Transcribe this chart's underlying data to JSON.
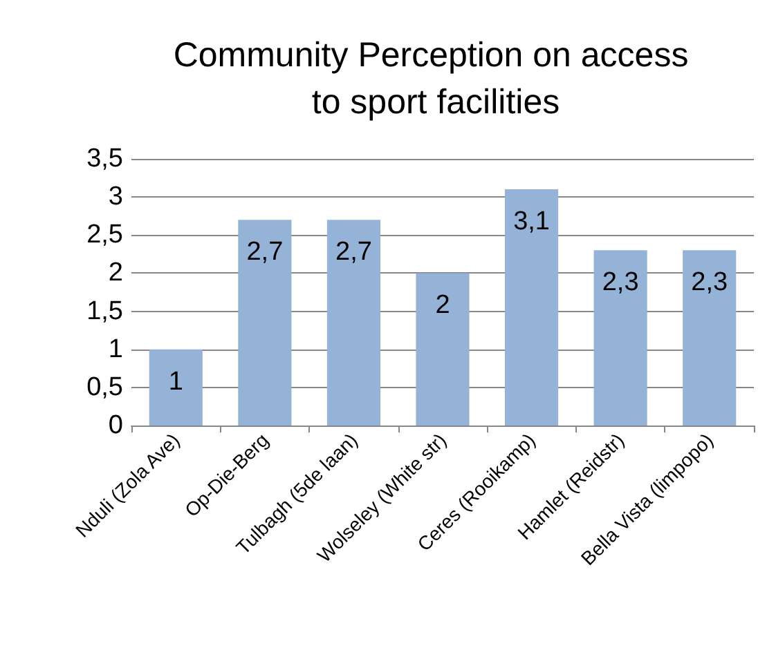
{
  "chart_data": {
    "type": "bar",
    "title": "Community Perception on access to sport facilities",
    "categories": [
      "Nduli (Zola Ave)",
      "Op-Die-Berg",
      "Tulbagh (5de laan)",
      "Wolseley (White str)",
      "Ceres (Rooikamp)",
      "Hamlet (Reidstr)",
      "Bella Vista (limpopo)"
    ],
    "values": [
      1,
      2.7,
      2.7,
      2,
      3.1,
      2.3,
      2.3
    ],
    "value_labels": [
      "1",
      "2,7",
      "2,7",
      "2",
      "3,1",
      "2,3",
      "2,3"
    ],
    "color": "#95b3d7",
    "ylim": [
      0,
      3.5
    ],
    "yticks": [
      {
        "value": 0,
        "label": "0"
      },
      {
        "value": 0.5,
        "label": "0,5"
      },
      {
        "value": 1,
        "label": "1"
      },
      {
        "value": 1.5,
        "label": "1,5"
      },
      {
        "value": 2,
        "label": "2"
      },
      {
        "value": 2.5,
        "label": "2,5"
      },
      {
        "value": 3,
        "label": "3"
      },
      {
        "value": 3.5,
        "label": "3,5"
      }
    ],
    "grid": "y"
  }
}
